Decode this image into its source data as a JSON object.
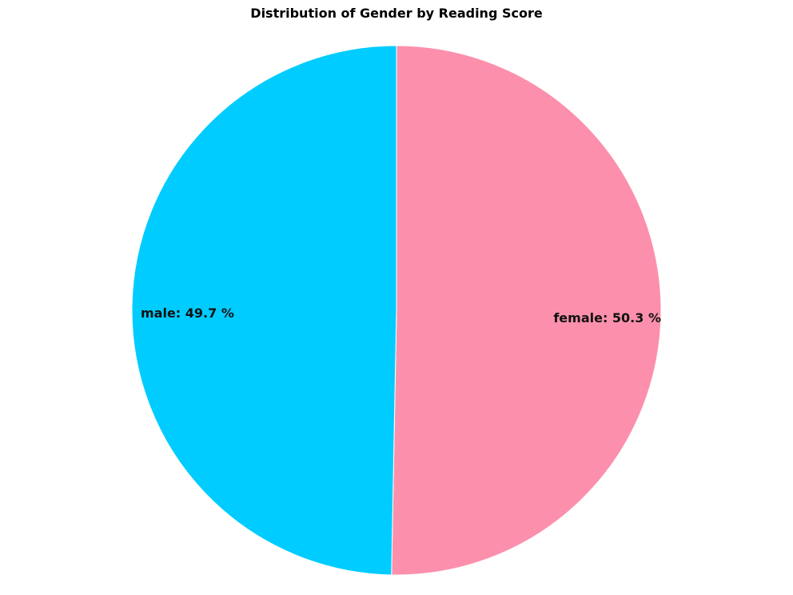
{
  "chart_data": {
    "type": "pie",
    "title": "Distribution of Gender by Reading Score",
    "slices": [
      {
        "label": "female",
        "value": 50.3,
        "color": "#fc90ac",
        "display": "female: 50.3 %"
      },
      {
        "label": "male",
        "value": 49.7,
        "color": "#00ccff",
        "display": "male: 49.7 %"
      }
    ],
    "unit": "%"
  }
}
